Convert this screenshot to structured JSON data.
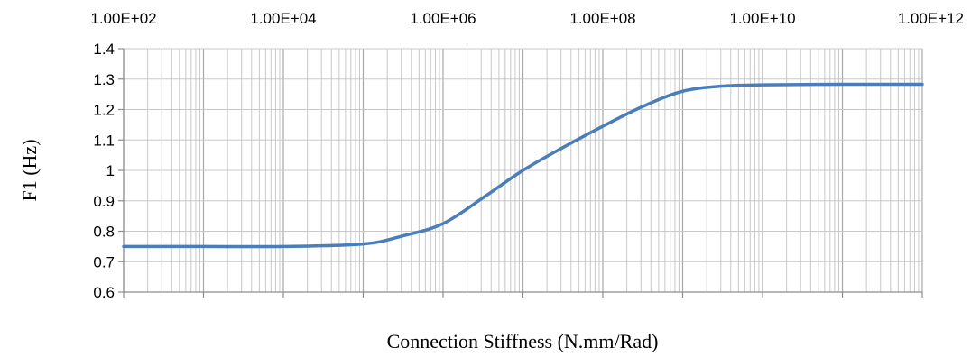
{
  "chart_data": {
    "type": "line",
    "title": "",
    "xlabel": "Connection Stiffness (N.mm/Rad)",
    "ylabel": "F1 (Hz)",
    "x_scale": "log",
    "xlim": [
      100,
      1000000000000
    ],
    "ylim": [
      0.6,
      1.4
    ],
    "x_tick_labels": [
      "1.00E+02",
      "1.00E+04",
      "1.00E+06",
      "1.00E+08",
      "1.00E+10",
      "1.00E+12"
    ],
    "x_tick_values": [
      100,
      10000,
      1000000,
      100000000,
      10000000000,
      1000000000000
    ],
    "y_tick_labels": [
      "0.6",
      "0.7",
      "0.8",
      "0.9",
      "1",
      "1.1",
      "1.2",
      "1.3",
      "1.4"
    ],
    "y_tick_values": [
      0.6,
      0.7,
      0.8,
      0.9,
      1.0,
      1.1,
      1.2,
      1.3,
      1.4
    ],
    "x_axis_position": "top",
    "grid": true,
    "grid_minor_x": true,
    "line_color": "#4a7ebb",
    "gridline_color": "#c8c8c8",
    "series": [
      {
        "x": [
          100,
          1000,
          10000,
          100000,
          316228,
          1000000,
          3162278,
          10000000,
          31622777,
          100000000,
          316227766,
          1000000000,
          3162277660,
          10000000000,
          100000000000,
          1000000000000
        ],
        "values": [
          0.75,
          0.75,
          0.75,
          0.758,
          0.785,
          0.825,
          0.91,
          1.0,
          1.075,
          1.145,
          1.21,
          1.26,
          1.277,
          1.281,
          1.283,
          1.283
        ]
      }
    ]
  }
}
